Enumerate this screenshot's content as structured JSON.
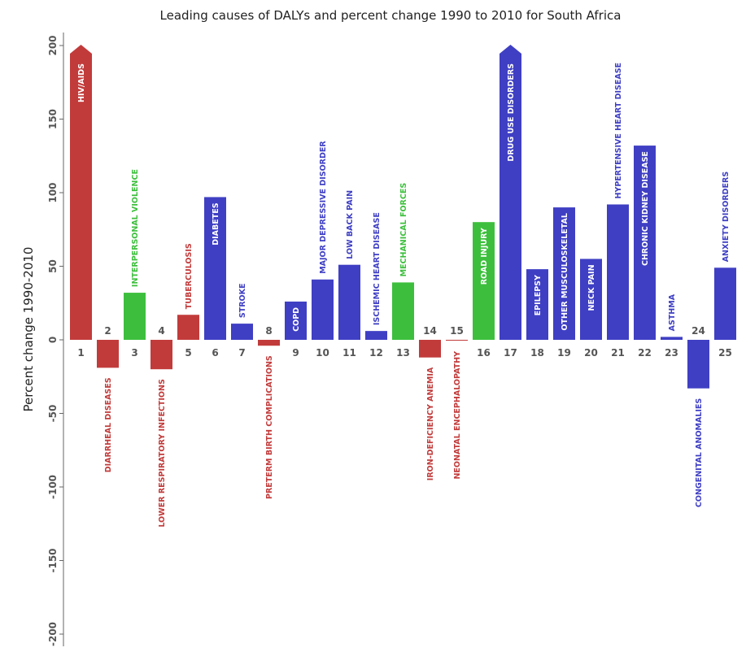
{
  "chart_data": {
    "type": "bar",
    "title": "Leading causes of DALYs and percent change 1990 to 2010 for South Africa",
    "ylabel": "Percent change 1990-2010",
    "ylim": [
      -200,
      200
    ],
    "yticks": [
      200,
      150,
      100,
      50,
      0,
      -50,
      -100,
      -150,
      -200
    ],
    "colors": {
      "communicable": "#c23b3b",
      "non_communicable": "#3f3fc4",
      "injuries": "#3dbf3d"
    },
    "bars": [
      {
        "rank": "1",
        "cause": "HIV/AIDS",
        "value": 200,
        "group": "communicable",
        "truncated": true
      },
      {
        "rank": "2",
        "cause": "DIARRHEAL DISEASES",
        "value": -19,
        "group": "communicable"
      },
      {
        "rank": "3",
        "cause": "INTERPERSONAL VIOLENCE",
        "value": 32,
        "group": "injuries"
      },
      {
        "rank": "4",
        "cause": "LOWER RESPIRATORY INFECTIONS",
        "value": -20,
        "group": "communicable"
      },
      {
        "rank": "5",
        "cause": "TUBERCULOSIS",
        "value": 17,
        "group": "communicable"
      },
      {
        "rank": "6",
        "cause": "DIABETES",
        "value": 97,
        "group": "non_communicable"
      },
      {
        "rank": "7",
        "cause": "STROKE",
        "value": 11,
        "group": "non_communicable"
      },
      {
        "rank": "8",
        "cause": "PRETERM BIRTH COMPLICATIONS",
        "value": -4,
        "group": "communicable"
      },
      {
        "rank": "9",
        "cause": "COPD",
        "value": 26,
        "group": "non_communicable"
      },
      {
        "rank": "10",
        "cause": "MAJOR DEPRESSIVE DISORDER",
        "value": 41,
        "group": "non_communicable"
      },
      {
        "rank": "11",
        "cause": "LOW BACK PAIN",
        "value": 51,
        "group": "non_communicable"
      },
      {
        "rank": "12",
        "cause": "ISCHEMIC HEART DISEASE",
        "value": 6,
        "group": "non_communicable"
      },
      {
        "rank": "13",
        "cause": "MECHANICAL FORCES",
        "value": 39,
        "group": "injuries"
      },
      {
        "rank": "14",
        "cause": "IRON-DEFICIENCY ANEMIA",
        "value": -12,
        "group": "communicable"
      },
      {
        "rank": "15",
        "cause": "NEONATAL ENCEPHALOPATHY",
        "value": -0.5,
        "group": "communicable"
      },
      {
        "rank": "16",
        "cause": "ROAD INJURY",
        "value": 80,
        "group": "injuries"
      },
      {
        "rank": "17",
        "cause": "DRUG USE DISORDERS",
        "value": 200,
        "group": "non_communicable",
        "truncated": true
      },
      {
        "rank": "18",
        "cause": "EPILEPSY",
        "value": 48,
        "group": "non_communicable"
      },
      {
        "rank": "19",
        "cause": "OTHER MUSCULOSKELETAL",
        "value": 90,
        "group": "non_communicable"
      },
      {
        "rank": "20",
        "cause": "NECK PAIN",
        "value": 55,
        "group": "non_communicable"
      },
      {
        "rank": "21",
        "cause": "HYPERTENSIVE HEART DISEASE",
        "value": 92,
        "group": "non_communicable"
      },
      {
        "rank": "22",
        "cause": "CHRONIC KIDNEY DISEASE",
        "value": 132,
        "group": "non_communicable"
      },
      {
        "rank": "23",
        "cause": "ASTHMA",
        "value": 2,
        "group": "non_communicable"
      },
      {
        "rank": "24",
        "cause": "CONGENITAL ANOMALIES",
        "value": -33,
        "group": "non_communicable"
      },
      {
        "rank": "25",
        "cause": "ANXIETY DISORDERS",
        "value": 49,
        "group": "non_communicable"
      }
    ]
  }
}
